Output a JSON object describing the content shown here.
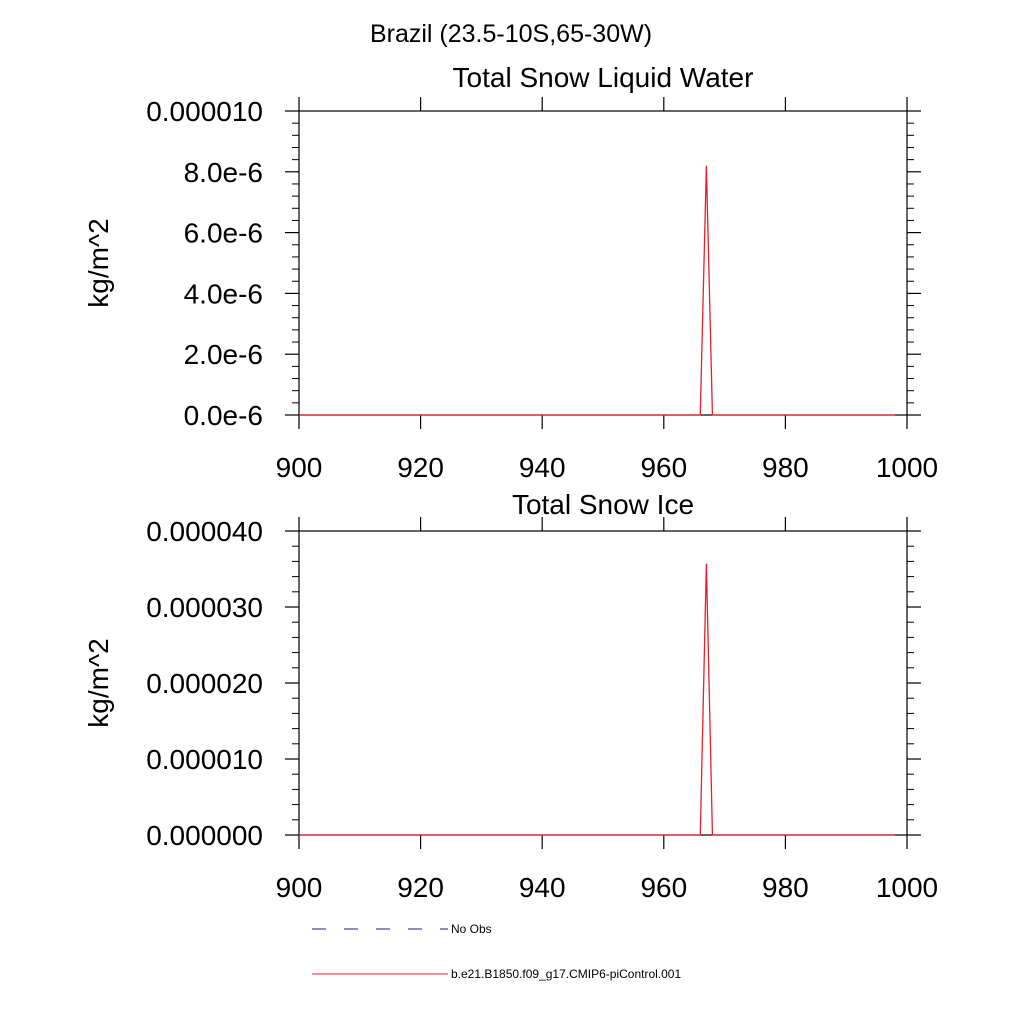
{
  "page_title": "Brazil (23.5-10S,65-30W)",
  "chart_data": [
    {
      "type": "line",
      "title": "Total Snow Liquid Water",
      "xlabel": "",
      "ylabel": "kg/m^2",
      "xlim": [
        900,
        1000
      ],
      "ylim": [
        0,
        1e-05
      ],
      "xticks": [
        900,
        920,
        940,
        960,
        980,
        1000
      ],
      "xtick_labels": [
        "900",
        "920",
        "940",
        "960",
        "980",
        "1000"
      ],
      "yticks": [
        0,
        2e-06,
        4e-06,
        6e-06,
        8e-06,
        1e-05
      ],
      "ytick_labels": [
        "0.0e-6",
        "2.0e-6",
        "4.0e-6",
        "6.0e-6",
        "8.0e-6",
        "0.000010"
      ],
      "grid": false,
      "series": [
        {
          "name": "b.e21.B1850.f09_g17.CMIP6-piControl.001",
          "color": "#e8202a",
          "x": [
            900,
            966,
            967,
            968,
            998
          ],
          "y": [
            0,
            0,
            8.2e-06,
            0,
            0
          ]
        }
      ]
    },
    {
      "type": "line",
      "title": "Total Snow Ice",
      "xlabel": "",
      "ylabel": "kg/m^2",
      "xlim": [
        900,
        1000
      ],
      "ylim": [
        0,
        4e-05
      ],
      "xticks": [
        900,
        920,
        940,
        960,
        980,
        1000
      ],
      "xtick_labels": [
        "900",
        "920",
        "940",
        "960",
        "980",
        "1000"
      ],
      "yticks": [
        0,
        1e-05,
        2e-05,
        3e-05,
        4e-05
      ],
      "ytick_labels": [
        "0.000000",
        "0.000010",
        "0.000020",
        "0.000030",
        "0.000040"
      ],
      "grid": false,
      "series": [
        {
          "name": "b.e21.B1850.f09_g17.CMIP6-piControl.001",
          "color": "#e8202a",
          "x": [
            900,
            966,
            967,
            968,
            998
          ],
          "y": [
            0,
            0,
            3.57e-05,
            0,
            0
          ]
        }
      ]
    }
  ],
  "legend": {
    "placement": "bottom-left",
    "entries": [
      {
        "label": "No Obs",
        "color": "#1a1a8c",
        "style": "dashed"
      },
      {
        "label": "b.e21.B1850.f09_g17.CMIP6-piControl.001",
        "color": "#e8202a",
        "style": "solid"
      }
    ]
  }
}
